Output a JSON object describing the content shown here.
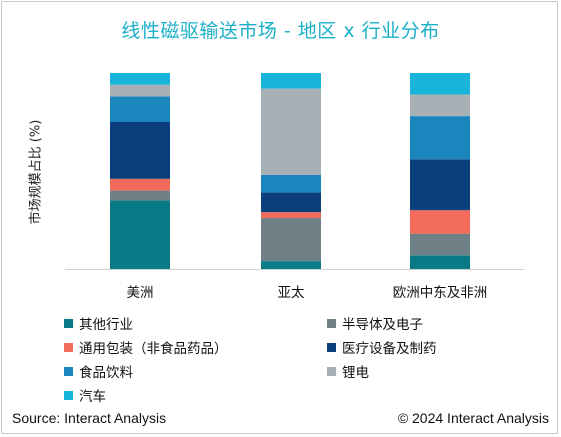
{
  "chart_data": {
    "type": "bar",
    "stacked": true,
    "title": "线性磁驱输送市场 - 地区 x 行业分布",
    "ylabel": "市场规模占比 (%)",
    "xlabel": "",
    "ylim": [
      0,
      100
    ],
    "grid": false,
    "legend_position": "bottom",
    "categories": [
      "美洲",
      "亚太",
      "欧洲中东及非洲"
    ],
    "series": [
      {
        "name": "其他行业",
        "color": "#0a7a86",
        "values": [
          35,
          4,
          7
        ]
      },
      {
        "name": "半导体及电子",
        "color": "#6f8187",
        "values": [
          5,
          22,
          11
        ]
      },
      {
        "name": "通用包装（非食品药品）",
        "color": "#f26b5b",
        "values": [
          6,
          3,
          12
        ]
      },
      {
        "name": "医疗设备及制药",
        "color": "#0b3f7c",
        "values": [
          29,
          10,
          26
        ]
      },
      {
        "name": "食品饮料",
        "color": "#1a86bd",
        "values": [
          13,
          9,
          22
        ]
      },
      {
        "name": "锂电",
        "color": "#a7b0b4",
        "values": [
          6,
          44,
          11
        ]
      },
      {
        "name": "汽车",
        "color": "#18b4da",
        "values": [
          6,
          8,
          11
        ]
      }
    ]
  },
  "footer": {
    "source": "Source: Interact Analysis",
    "copyright": "© 2024 Interact Analysis"
  }
}
